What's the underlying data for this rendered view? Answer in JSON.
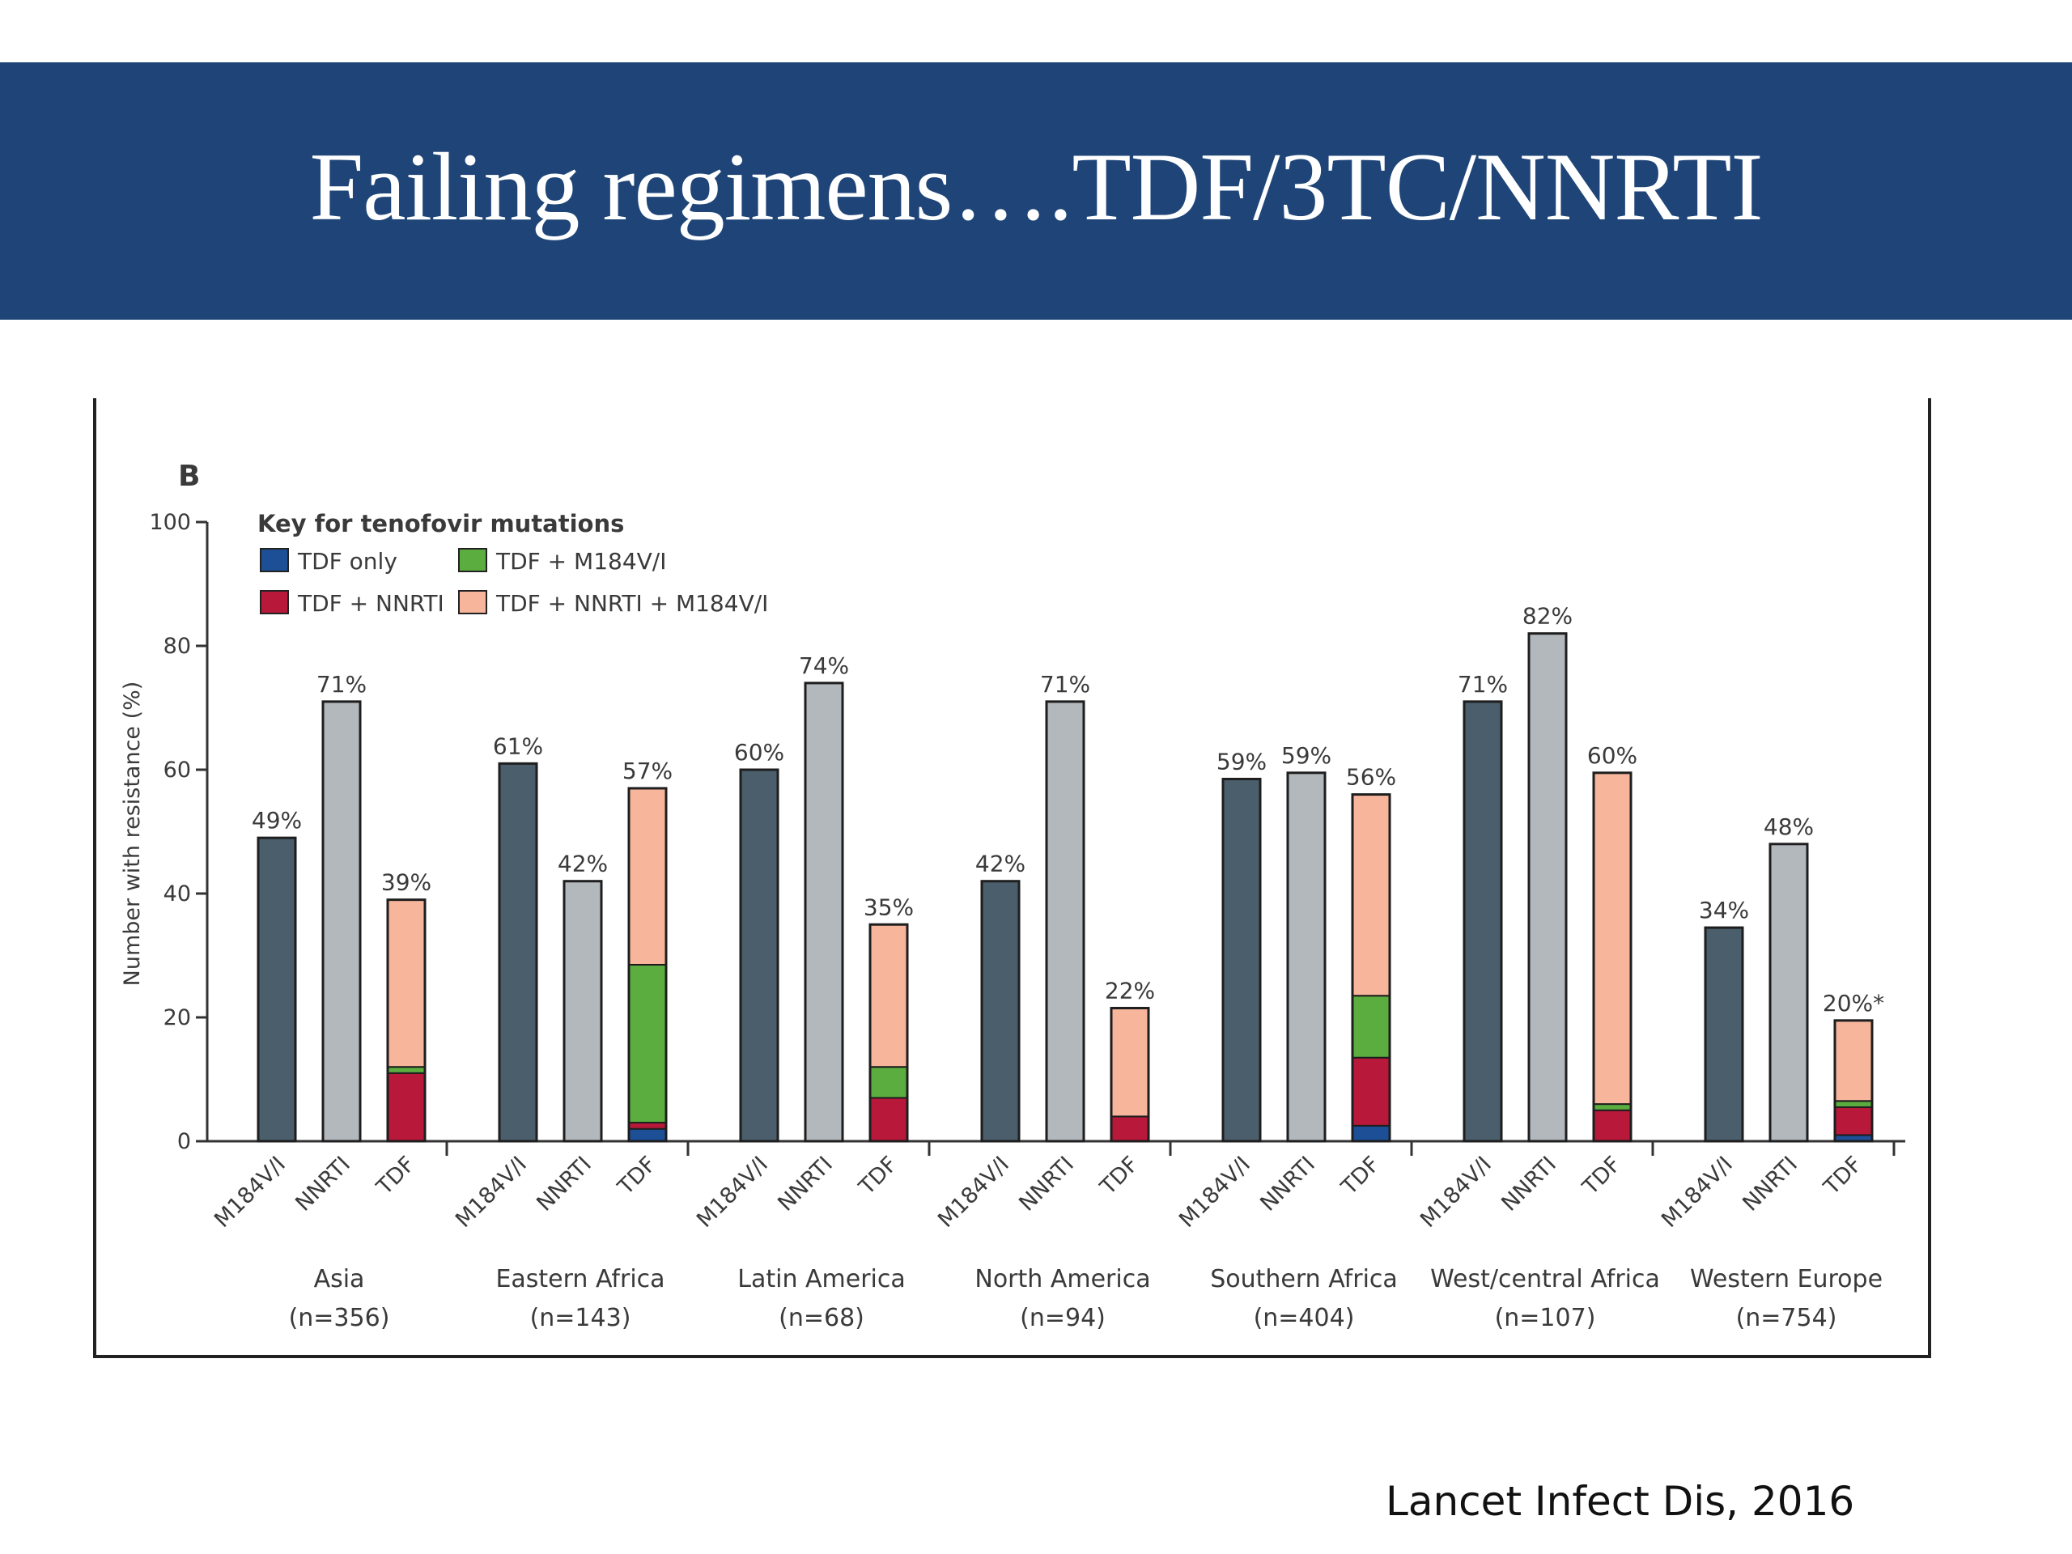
{
  "slide": {
    "title": "Failing regimens….TDF/3TC/NNRTI",
    "citation": "Lancet Infect Dis, 2016"
  },
  "chart_data": {
    "type": "bar",
    "panel_label": "B",
    "ylabel": "Number with resistance (%)",
    "ylim": [
      0,
      100
    ],
    "yticks": [
      0,
      20,
      40,
      60,
      80,
      100
    ],
    "legend": {
      "title": "Key for tenofovir mutations",
      "placement": "top-left",
      "entries": [
        {
          "name": "TDF only",
          "color": "#1c4f96"
        },
        {
          "name": "TDF + M184V/I",
          "color": "#5cad3f"
        },
        {
          "name": "TDF + NNRTI",
          "color": "#b8183a"
        },
        {
          "name": "TDF + NNRTI + M184V/I",
          "color": "#f7b59b"
        }
      ]
    },
    "colors": {
      "M184V/I": "#4a5e6b",
      "NNRTI": "#b3b8bd",
      "TDF only": "#1c4f96",
      "TDF + M184V/I": "#5cad3f",
      "TDF + NNRTI": "#b8183a",
      "TDF + NNRTI + M184V/I": "#f7b59b"
    },
    "bar_categories": [
      "M184V/I",
      "NNRTI",
      "TDF"
    ],
    "groups": [
      {
        "name": "Asia",
        "n": "(n=356)",
        "m184": 49,
        "m184_label": "49%",
        "nnrti": 71,
        "nnrti_label": "71%",
        "tdf_label": "39%",
        "tdf_segments": {
          "TDF only": 0,
          "TDF + NNRTI": 11,
          "TDF + M184V/I": 1,
          "TDF + NNRTI + M184V/I": 27
        }
      },
      {
        "name": "Eastern Africa",
        "n": "(n=143)",
        "m184": 61,
        "m184_label": "61%",
        "nnrti": 42,
        "nnrti_label": "42%",
        "tdf_label": "57%",
        "tdf_segments": {
          "TDF only": 2,
          "TDF + NNRTI": 1,
          "TDF + M184V/I": 25.5,
          "TDF + NNRTI + M184V/I": 28.5
        }
      },
      {
        "name": "Latin America",
        "n": "(n=68)",
        "m184": 60,
        "m184_label": "60%",
        "nnrti": 74,
        "nnrti_label": "74%",
        "tdf_label": "35%",
        "tdf_segments": {
          "TDF only": 0,
          "TDF + NNRTI": 7,
          "TDF + M184V/I": 5,
          "TDF + NNRTI + M184V/I": 23
        }
      },
      {
        "name": "North America",
        "n": "(n=94)",
        "m184": 42,
        "m184_label": "42%",
        "nnrti": 71,
        "nnrti_label": "71%",
        "tdf_label": "22%",
        "tdf_segments": {
          "TDF only": 0,
          "TDF + NNRTI": 4,
          "TDF + M184V/I": 0,
          "TDF + NNRTI + M184V/I": 17.5
        }
      },
      {
        "name": "Southern Africa",
        "n": "(n=404)",
        "m184": 58.5,
        "m184_label": "59%",
        "nnrti": 59.5,
        "nnrti_label": "59%",
        "tdf_label": "56%",
        "tdf_segments": {
          "TDF only": 2.5,
          "TDF + NNRTI": 11,
          "TDF + M184V/I": 10,
          "TDF + NNRTI + M184V/I": 32.5
        }
      },
      {
        "name": "West/central Africa",
        "n": "(n=107)",
        "m184": 71,
        "m184_label": "71%",
        "nnrti": 82,
        "nnrti_label": "82%",
        "tdf_label": "60%",
        "tdf_segments": {
          "TDF only": 0,
          "TDF + NNRTI": 5,
          "TDF + M184V/I": 1,
          "TDF + NNRTI + M184V/I": 53.5
        }
      },
      {
        "name": "Western Europe",
        "n": "(n=754)",
        "m184": 34.5,
        "m184_label": "34%",
        "nnrti": 48,
        "nnrti_label": "48%",
        "tdf_label": "20%*",
        "tdf_segments": {
          "TDF only": 1,
          "TDF + NNRTI": 4.5,
          "TDF + M184V/I": 1,
          "TDF + NNRTI + M184V/I": 13
        }
      }
    ]
  }
}
